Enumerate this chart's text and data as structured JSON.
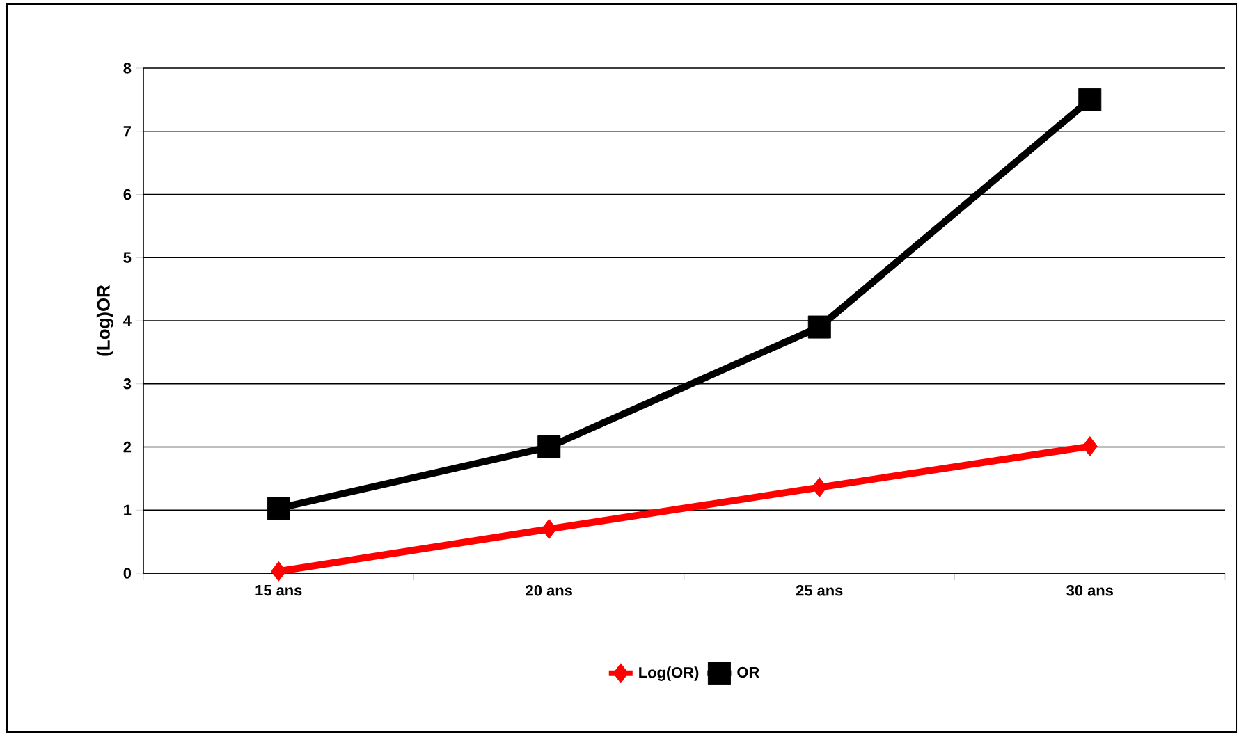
{
  "chart_data": {
    "type": "line",
    "ylabel": "(Log)OR",
    "categories": [
      "15 ans",
      "20 ans",
      "25 ans",
      "30 ans"
    ],
    "series": [
      {
        "name": "Log(OR)",
        "color": "#ff0000",
        "marker": "diamond",
        "values": [
          0.03,
          0.7,
          1.36,
          2.01
        ]
      },
      {
        "name": "OR",
        "color": "#000000",
        "marker": "square",
        "values": [
          1.03,
          2.0,
          3.9,
          7.5
        ]
      }
    ],
    "ylim": [
      0,
      8
    ],
    "yticks": [
      0,
      1,
      2,
      3,
      4,
      5,
      6,
      7,
      8
    ],
    "grid": "y",
    "legend": "bottom",
    "line_style": "solid"
  }
}
